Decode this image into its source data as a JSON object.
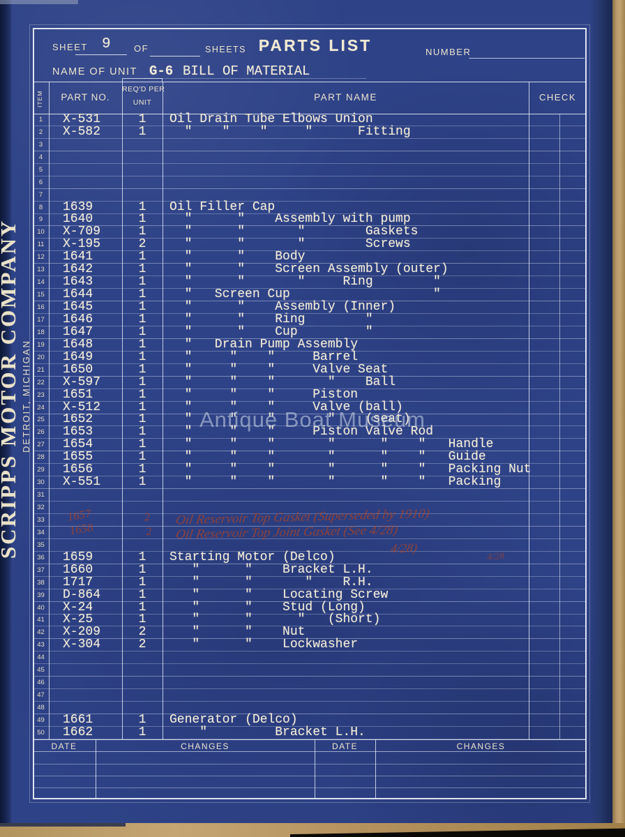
{
  "colors": {
    "page_blue": "#2e4287",
    "ink_cream": "#ece5cf",
    "typewriter": "#f2ecd9",
    "handwriting_red": "#a8432a",
    "binding_navy": "#16234e",
    "paper_tan": "#bb9c6e"
  },
  "side": {
    "company": "SCRIPPS MOTOR COMPANY",
    "city": "DETROIT, MICHIGAN"
  },
  "watermark": "Antique Boat Museum",
  "header": {
    "sheet_label": "SHEET",
    "sheet_number": "9",
    "of_label": "OF",
    "sheets_label": "SHEETS",
    "title": "PARTS LIST",
    "number_label": "NUMBER",
    "number_value": "",
    "name_of_unit_label": "NAME OF UNIT",
    "unit_value": "G-6",
    "material_title": "BILL OF MATERIAL"
  },
  "table": {
    "col_headers": {
      "item": "ITEM",
      "part_no": "PART NO.",
      "reqd_line1": "REQ'D PER",
      "reqd_line2": "UNIT",
      "part_name": "PART NAME",
      "check": "CHECK"
    },
    "rows": [
      {
        "item": "1",
        "part_no": "X-531",
        "qty": "1",
        "name": "Oil Drain Tube Elbows Union"
      },
      {
        "item": "2",
        "part_no": "X-582",
        "qty": "1",
        "name": "  \"    \"    \"     \"      Fitting"
      },
      {
        "item": "3",
        "part_no": "",
        "qty": "",
        "name": ""
      },
      {
        "item": "4",
        "part_no": "",
        "qty": "",
        "name": ""
      },
      {
        "item": "5",
        "part_no": "",
        "qty": "",
        "name": ""
      },
      {
        "item": "6",
        "part_no": "",
        "qty": "",
        "name": ""
      },
      {
        "item": "7",
        "part_no": "",
        "qty": "",
        "name": ""
      },
      {
        "item": "8",
        "part_no": "1639",
        "qty": "1",
        "name": "Oil Filler Cap"
      },
      {
        "item": "9",
        "part_no": "1640",
        "qty": "1",
        "name": "  \"      \"    Assembly with pump"
      },
      {
        "item": "10",
        "part_no": "X-709",
        "qty": "1",
        "name": "  \"      \"       \"        Gaskets"
      },
      {
        "item": "11",
        "part_no": "X-195",
        "qty": "2",
        "name": "  \"      \"       \"        Screws"
      },
      {
        "item": "12",
        "part_no": "1641",
        "qty": "1",
        "name": "  \"      \"    Body"
      },
      {
        "item": "13",
        "part_no": "1642",
        "qty": "1",
        "name": "  \"      \"    Screen Assembly (outer)"
      },
      {
        "item": "14",
        "part_no": "1643",
        "qty": "1",
        "name": "  \"      \"       \"     Ring        \""
      },
      {
        "item": "15",
        "part_no": "1644",
        "qty": "1",
        "name": "  \"   Screen Cup                   \""
      },
      {
        "item": "16",
        "part_no": "1645",
        "qty": "1",
        "name": "  \"      \"    Assembly (Inner)"
      },
      {
        "item": "17",
        "part_no": "1646",
        "qty": "1",
        "name": "  \"      \"    Ring        \""
      },
      {
        "item": "18",
        "part_no": "1647",
        "qty": "1",
        "name": "  \"      \"    Cup         \""
      },
      {
        "item": "19",
        "part_no": "1648",
        "qty": "1",
        "name": "  \"   Drain Pump Assembly"
      },
      {
        "item": "20",
        "part_no": "1649",
        "qty": "1",
        "name": "  \"     \"    \"     Barrel"
      },
      {
        "item": "21",
        "part_no": "1650",
        "qty": "1",
        "name": "  \"     \"    \"     Valve Seat"
      },
      {
        "item": "22",
        "part_no": "X-597",
        "qty": "1",
        "name": "  \"     \"    \"       \"    Ball"
      },
      {
        "item": "23",
        "part_no": "1651",
        "qty": "1",
        "name": "  \"     \"    \"     Piston"
      },
      {
        "item": "24",
        "part_no": "X-512",
        "qty": "1",
        "name": "  \"     \"    \"     Valve (ball)"
      },
      {
        "item": "25",
        "part_no": "1652",
        "qty": "1",
        "name": "  \"     \"    \"       \"    (seat)"
      },
      {
        "item": "26",
        "part_no": "1653",
        "qty": "1",
        "name": "  \"     \"    \"     Piston Valve Rod"
      },
      {
        "item": "27",
        "part_no": "1654",
        "qty": "1",
        "name": "  \"     \"    \"       \"      \"    \"   Handle"
      },
      {
        "item": "28",
        "part_no": "1655",
        "qty": "1",
        "name": "  \"     \"    \"       \"      \"    \"   Guide"
      },
      {
        "item": "29",
        "part_no": "1656",
        "qty": "1",
        "name": "  \"     \"    \"       \"      \"    \"   Packing Nut"
      },
      {
        "item": "30",
        "part_no": "X-551",
        "qty": "1",
        "name": "  \"     \"    \"       \"      \"    \"   Packing"
      },
      {
        "item": "31",
        "part_no": "",
        "qty": "",
        "name": ""
      },
      {
        "item": "32",
        "part_no": "",
        "qty": "",
        "name": ""
      },
      {
        "item": "33",
        "part_no": "",
        "qty": "",
        "name": ""
      },
      {
        "item": "34",
        "part_no": "",
        "qty": "",
        "name": ""
      },
      {
        "item": "35",
        "part_no": "",
        "qty": "",
        "name": ""
      },
      {
        "item": "36",
        "part_no": "1659",
        "qty": "1",
        "name": "Starting Motor (Delco)"
      },
      {
        "item": "37",
        "part_no": "1660",
        "qty": "1",
        "name": "   \"      \"    Bracket L.H."
      },
      {
        "item": "38",
        "part_no": "1717",
        "qty": "1",
        "name": "   \"      \"       \"    R.H."
      },
      {
        "item": "39",
        "part_no": "D-864",
        "qty": "1",
        "name": "   \"      \"    Locating Screw"
      },
      {
        "item": "40",
        "part_no": "X-24",
        "qty": "1",
        "name": "   \"      \"    Stud (Long)"
      },
      {
        "item": "41",
        "part_no": "X-25",
        "qty": "1",
        "name": "   \"      \"      \"   (Short)"
      },
      {
        "item": "42",
        "part_no": "X-209",
        "qty": "2",
        "name": "   \"      \"    Nut"
      },
      {
        "item": "43",
        "part_no": "X-304",
        "qty": "2",
        "name": "   \"      \"    Lockwasher"
      },
      {
        "item": "44",
        "part_no": "",
        "qty": "",
        "name": ""
      },
      {
        "item": "45",
        "part_no": "",
        "qty": "",
        "name": ""
      },
      {
        "item": "46",
        "part_no": "",
        "qty": "",
        "name": ""
      },
      {
        "item": "47",
        "part_no": "",
        "qty": "",
        "name": ""
      },
      {
        "item": "48",
        "part_no": "",
        "qty": "",
        "name": ""
      },
      {
        "item": "49",
        "part_no": "1661",
        "qty": "1",
        "name": "Generator (Delco)"
      },
      {
        "item": "50",
        "part_no": "1662",
        "qty": "1",
        "name": "    \"         Bracket L.H."
      }
    ]
  },
  "handwritten_rows": {
    "part_nos": [
      "1657",
      "1658"
    ],
    "quantities": [
      "2",
      "2"
    ],
    "script_lines": [
      "Oil Reservoir Top Gasket    (Superseded by 1910)",
      "Oil Reservoir Top Joint Gasket   (See 4/28)",
      "4/28)"
    ],
    "margin_note": "4/28"
  },
  "footer": {
    "col_headers": [
      "DATE",
      "CHANGES",
      "DATE",
      "CHANGES"
    ]
  }
}
